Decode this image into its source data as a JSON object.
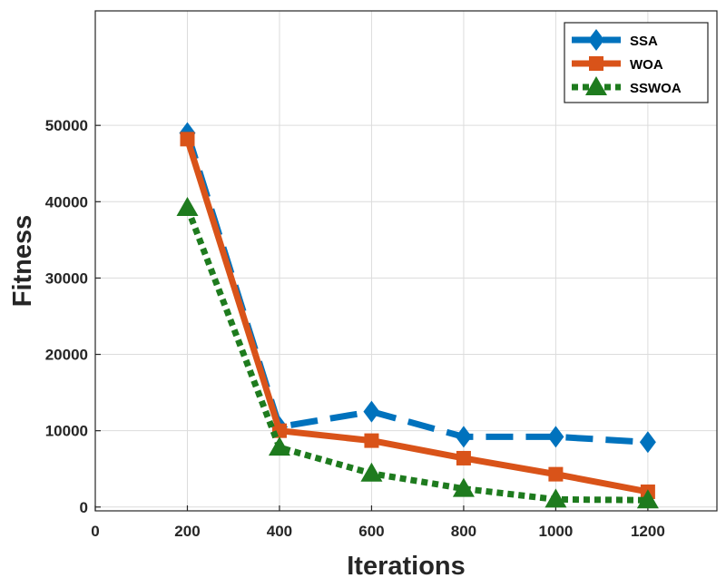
{
  "chart_data": {
    "type": "line",
    "title": "",
    "xlabel": "Iterations",
    "ylabel": "Fitness",
    "x": [
      200,
      400,
      600,
      800,
      1000,
      1200
    ],
    "xlim": [
      0,
      1350
    ],
    "ylim": [
      -500,
      65000
    ],
    "xticks": [
      0,
      200,
      400,
      600,
      800,
      1000,
      1200
    ],
    "yticks": [
      0,
      10000,
      20000,
      30000,
      40000,
      50000
    ],
    "grid": true,
    "legend_position": "top-right",
    "series": [
      {
        "name": "SSA",
        "values": [
          49000,
          10500,
          12500,
          9200,
          9200,
          8500
        ],
        "color": "#0072BD",
        "style": "dashed",
        "marker": "diamond"
      },
      {
        "name": "WOA",
        "values": [
          48200,
          10000,
          8700,
          6400,
          4300,
          2000
        ],
        "color": "#D95319",
        "style": "solid",
        "marker": "square"
      },
      {
        "name": "SSWOA",
        "values": [
          39200,
          7800,
          4400,
          2400,
          1000,
          900
        ],
        "color": "#1E7B1E",
        "style": "dotted",
        "marker": "triangle"
      }
    ]
  }
}
